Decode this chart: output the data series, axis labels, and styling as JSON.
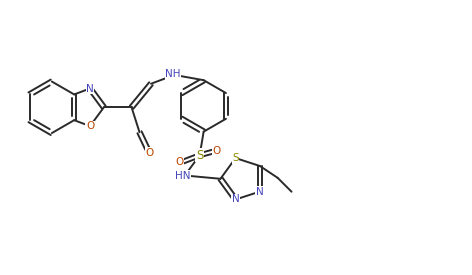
{
  "bg_color": "#ffffff",
  "line_color": "#2a2a2a",
  "atom_colors": {
    "N": "#4444bb",
    "O": "#bb4400",
    "S": "#888800",
    "C": "#2a2a2a"
  },
  "figsize": [
    4.72,
    2.75
  ],
  "dpi": 100,
  "lw": 1.4,
  "fs": 7.5
}
